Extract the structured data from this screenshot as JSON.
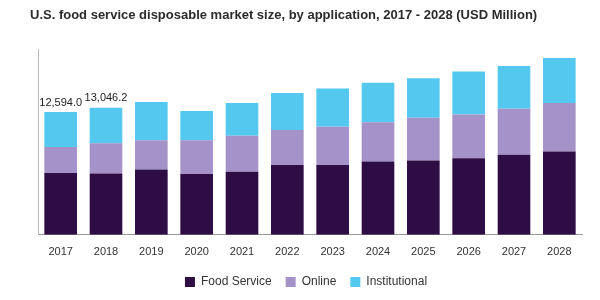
{
  "chart_data": {
    "type": "bar",
    "title": "U.S. food service disposable market size, by application, 2017 - 2028 (USD Million)",
    "categories": [
      "2017",
      "2018",
      "2019",
      "2020",
      "2021",
      "2022",
      "2023",
      "2024",
      "2025",
      "2026",
      "2027",
      "2028"
    ],
    "series": [
      {
        "name": "Food Service",
        "color": "#2e0d45",
        "values": [
          6350,
          6300,
          6700,
          6240,
          6470,
          7160,
          7160,
          7510,
          7620,
          7850,
          8200,
          8550
        ]
      },
      {
        "name": "Online",
        "color": "#a592c8",
        "values": [
          2650,
          3100,
          3000,
          3460,
          3700,
          3580,
          3930,
          4040,
          4390,
          4500,
          4740,
          4970
        ]
      },
      {
        "name": "Institutional",
        "color": "#55c8ef",
        "values": [
          3594,
          3646.2,
          3930,
          3000,
          3340,
          3810,
          3920,
          4040,
          4040,
          4400,
          4380,
          4610
        ]
      }
    ],
    "annotations": [
      {
        "x": "2017",
        "value": 12594.0,
        "label": "12,594.0"
      },
      {
        "x": "2018",
        "value": 13046.2,
        "label": "13,046.2"
      }
    ],
    "ylim": [
      0,
      19000
    ],
    "stacked": true,
    "grid": false,
    "legend": "bottom",
    "tick_labels": "x"
  }
}
